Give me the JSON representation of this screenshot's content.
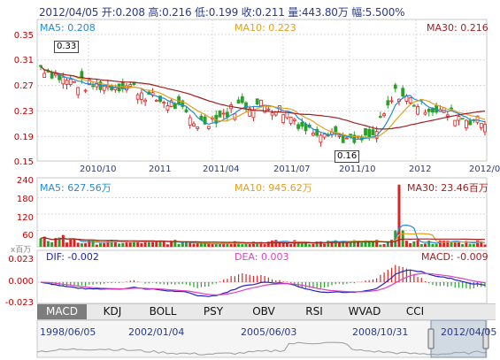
{
  "header": {
    "date": "2012/04/05",
    "open": "开:0.208",
    "high": "高:0.216",
    "low": "低:0.199",
    "close": "收:0.211",
    "volume": "量:443.80万",
    "change": "幅:5.500%"
  },
  "price_panel": {
    "ma5": "MA5: 0.208",
    "ma10": "MA10: 0.223",
    "ma30": "MA30: 0.216",
    "y_ticks": [
      "0.35",
      "0.31",
      "0.27",
      "0.23",
      "0.19",
      "0.15"
    ],
    "x_ticks": [
      "2010/10",
      "2011",
      "2011/04",
      "2011/07",
      "2011/10",
      "2012",
      "2012/0"
    ],
    "max_label": "0.33",
    "min_label": "0.16"
  },
  "volume_panel": {
    "ma5": "MA5: 627.56万",
    "ma10": "MA10: 945.62万",
    "ma30": "MA30: 23.46百万",
    "y_ticks": [
      "240",
      "180",
      "120",
      "60"
    ],
    "unit": "x百万"
  },
  "macd_panel": {
    "dif": "DIF: -0.002",
    "dea": "DEA: 0.003",
    "macd": "MACD: -0.009",
    "y_ticks": [
      "0.023",
      "0.000",
      "-0.023"
    ]
  },
  "tabs": [
    "MACD",
    "KDJ",
    "BOLL",
    "PSY",
    "OBV",
    "RSI",
    "WVAD",
    "CCI"
  ],
  "active_tab": "MACD",
  "navigator": {
    "labels": [
      "1998/06/05",
      "2002/01/04",
      "2005/06/03",
      "2008/10/31",
      "2012/04/05"
    ]
  },
  "colors": {
    "up": "#dd2222",
    "down": "#2aa02a",
    "ma5": "#1f8bd6",
    "ma10": "#e0a020",
    "ma30": "#a02020",
    "dif": "#2020c0",
    "dea": "#e040c0",
    "grid": "#d8d8d8",
    "axis_text": "#c00000"
  },
  "chart_data": {
    "type": "candlestick",
    "title": "",
    "price_range": [
      0.15,
      0.35
    ],
    "volume_range_millions": [
      0,
      240
    ],
    "macd_range": [
      -0.023,
      0.023
    ],
    "close_trend": [
      {
        "date": "2010/08",
        "close": 0.3
      },
      {
        "date": "2010/09",
        "close": 0.28
      },
      {
        "date": "2010/10",
        "close": 0.27
      },
      {
        "date": "2010/11",
        "close": 0.27
      },
      {
        "date": "2010/12",
        "close": 0.27
      },
      {
        "date": "2011/01",
        "close": 0.25
      },
      {
        "date": "2011/02",
        "close": 0.24
      },
      {
        "date": "2011/03",
        "close": 0.21
      },
      {
        "date": "2011/04",
        "close": 0.22
      },
      {
        "date": "2011/05",
        "close": 0.24
      },
      {
        "date": "2011/06",
        "close": 0.24
      },
      {
        "date": "2011/07",
        "close": 0.23
      },
      {
        "date": "2011/08",
        "close": 0.2
      },
      {
        "date": "2011/09",
        "close": 0.2
      },
      {
        "date": "2011/10",
        "close": 0.18
      },
      {
        "date": "2011/11",
        "close": 0.19
      },
      {
        "date": "2011/12",
        "close": 0.26
      },
      {
        "date": "2012/01",
        "close": 0.24
      },
      {
        "date": "2012/02",
        "close": 0.23
      },
      {
        "date": "2012/03",
        "close": 0.22
      },
      {
        "date": "2012/04",
        "close": 0.211
      }
    ],
    "max_price": 0.33,
    "min_price": 0.16
  }
}
